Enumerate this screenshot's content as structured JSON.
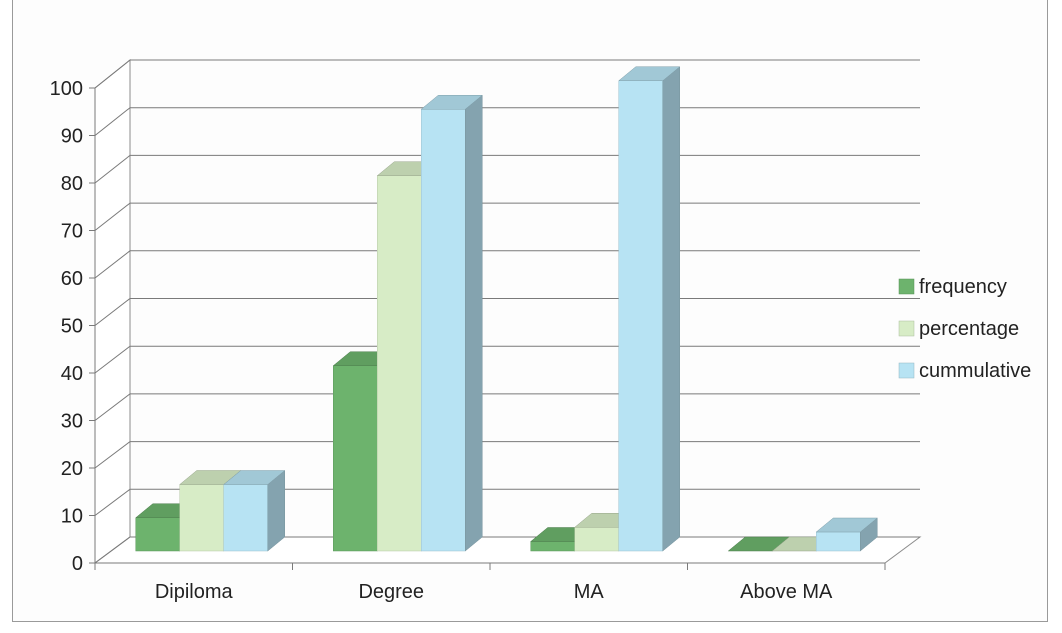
{
  "chart_data": {
    "type": "bar",
    "categories": [
      "Dipiloma",
      "Degree",
      "MA",
      "Above MA"
    ],
    "series": [
      {
        "name": "frequency",
        "values": [
          7,
          39,
          2,
          0
        ],
        "color": "#6db36d"
      },
      {
        "name": "percentage",
        "values": [
          14,
          79,
          5,
          0
        ],
        "color": "#d7ecc6"
      },
      {
        "name": "cummulative",
        "values": [
          14,
          93,
          99,
          4
        ],
        "color": "#b7e3f3"
      }
    ],
    "yticks": [
      0,
      10,
      20,
      30,
      40,
      50,
      60,
      70,
      80,
      90,
      100
    ],
    "ylim": [
      0,
      100
    ],
    "grid": true,
    "legend_position": "right",
    "style": "3d-clustered-column"
  }
}
